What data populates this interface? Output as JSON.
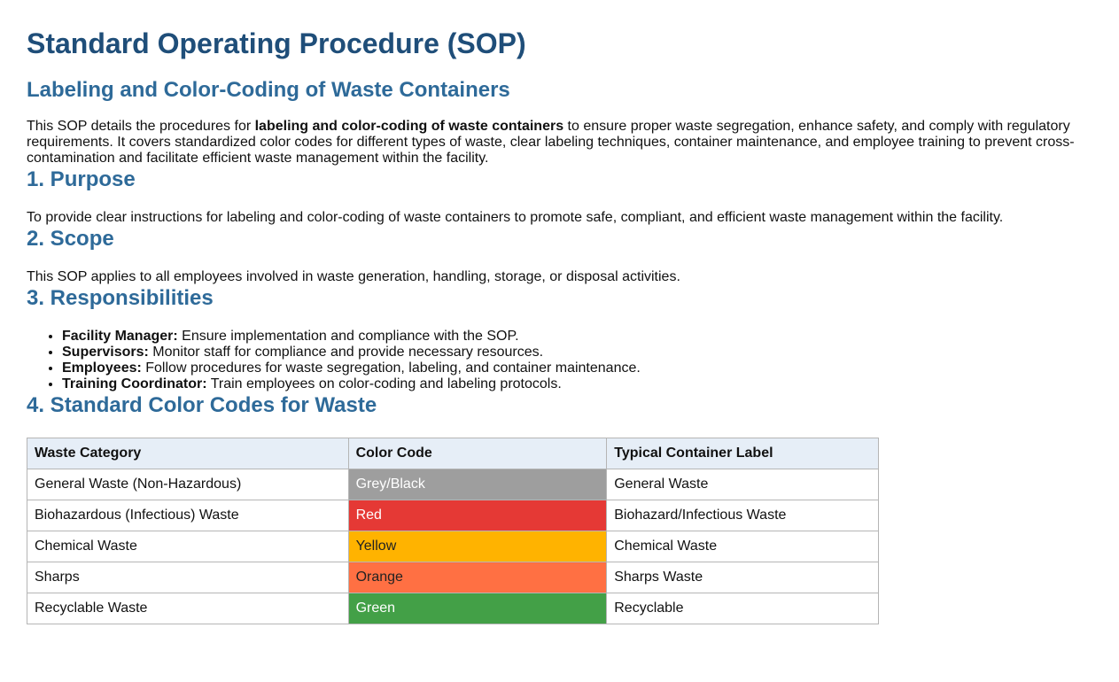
{
  "title": "Standard Operating Procedure (SOP)",
  "subtitle": "Labeling and Color-Coding of Waste Containers",
  "intro": {
    "before": "This SOP details the procedures for ",
    "bold": "labeling and color-coding of waste containers",
    "after": " to ensure proper waste segregation, enhance safety, and comply with regulatory requirements. It covers standardized color codes for different types of waste, clear labeling techniques, container maintenance, and employee training to prevent cross-contamination and facilitate efficient waste management within the facility."
  },
  "purpose": {
    "heading": "1. Purpose",
    "text": "To provide clear instructions for labeling and color-coding of waste containers to promote safe, compliant, and efficient waste management within the facility."
  },
  "scope": {
    "heading": "2. Scope",
    "text": "This SOP applies to all employees involved in waste generation, handling, storage, or disposal activities."
  },
  "responsibilities": {
    "heading": "3. Responsibilities",
    "items": [
      {
        "role": "Facility Manager:",
        "desc": " Ensure implementation and compliance with the SOP."
      },
      {
        "role": "Supervisors:",
        "desc": " Monitor staff for compliance and provide necessary resources."
      },
      {
        "role": "Employees:",
        "desc": " Follow procedures for waste segregation, labeling, and container maintenance."
      },
      {
        "role": "Training Coordinator:",
        "desc": " Train employees on color-coding and labeling protocols."
      }
    ]
  },
  "colors": {
    "heading": "4. Standard Color Codes for Waste",
    "headers": [
      "Waste Category",
      "Color Code",
      "Typical Container Label"
    ],
    "rows": [
      {
        "category": "General Waste (Non-Hazardous)",
        "color": "Grey/Black",
        "hex": "#9e9e9e",
        "text_color": "#ffffff",
        "label": "General Waste"
      },
      {
        "category": "Biohazardous (Infectious) Waste",
        "color": "Red",
        "hex": "#e53935",
        "text_color": "#ffffff",
        "label": "Biohazard/Infectious Waste"
      },
      {
        "category": "Chemical Waste",
        "color": "Yellow",
        "hex": "#ffb300",
        "text_color": "#222222",
        "label": "Chemical Waste"
      },
      {
        "category": "Sharps",
        "color": "Orange",
        "hex": "#ff7043",
        "text_color": "#222222",
        "label": "Sharps Waste"
      },
      {
        "category": "Recyclable Waste",
        "color": "Green",
        "hex": "#43a047",
        "text_color": "#ffffff",
        "label": "Recyclable"
      }
    ]
  }
}
